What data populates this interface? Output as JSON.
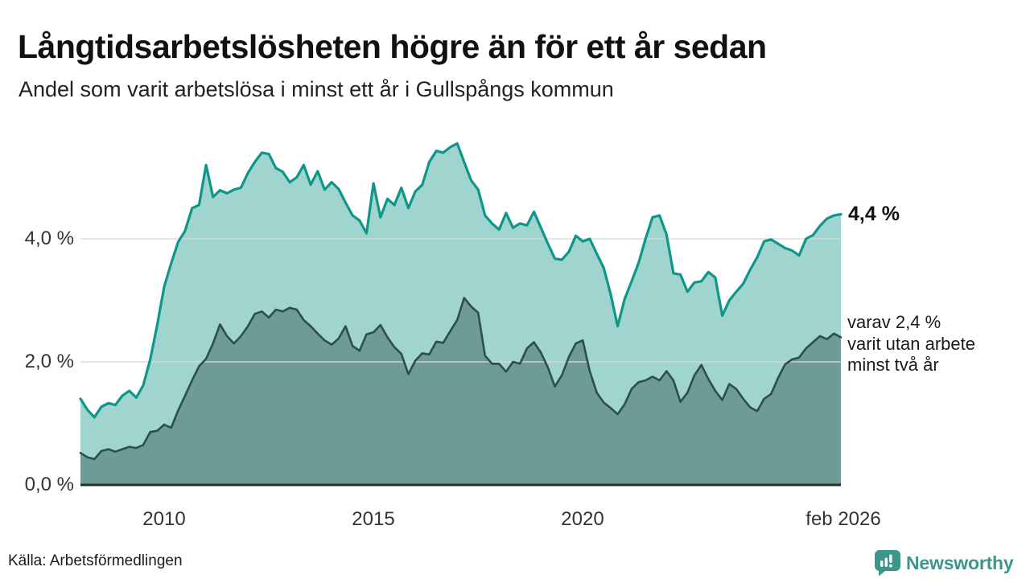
{
  "title": "Långtidsarbetslösheten högre än för ett år sedan",
  "subtitle": "Andel som varit arbetslösa i minst ett år i Gullspångs kommun",
  "source": "Källa: Arbetsförmedlingen",
  "branding": {
    "name": "Newsworthy"
  },
  "annotations": {
    "latest_total": "4,4 %",
    "sub_lines": [
      "varav 2,4 %",
      "varit utan arbete",
      "minst två år"
    ]
  },
  "colors": {
    "line_1": "#0f968a",
    "area_fill_1": "#a0d4ce",
    "line_2": "#2e4e4b",
    "area_fill_2": "#6f9b96",
    "gridline": "#d9d9d9",
    "baseline": "#22322f",
    "brand_teal": "#3d968a",
    "text": "#1a1a1a"
  },
  "chart_data": {
    "type": "area",
    "unit": "%",
    "x_start": "jan 2008",
    "x_end": "feb 2026",
    "sample_interval_months": 2,
    "xticks": [
      "2010",
      "2015",
      "2020",
      "feb 2026"
    ],
    "yticks": [
      "0,0 %",
      "2,0 %",
      "4,0 %"
    ],
    "ytick_values": [
      0.0,
      2.0,
      4.0
    ],
    "gridline_values": [
      2.0,
      4.0
    ],
    "ylim": [
      0,
      5.8
    ],
    "legend_position": "none",
    "grid": "horizontal-only",
    "series": [
      {
        "name": "Andel arbetslösa minst ett år",
        "latest_value": 4.4,
        "values": [
          1.4,
          1.22,
          1.1,
          1.27,
          1.33,
          1.3,
          1.45,
          1.53,
          1.42,
          1.62,
          2.04,
          2.6,
          3.22,
          3.6,
          3.95,
          4.13,
          4.5,
          4.55,
          5.2,
          4.68,
          4.79,
          4.74,
          4.8,
          4.83,
          5.07,
          5.25,
          5.4,
          5.38,
          5.15,
          5.09,
          4.92,
          5.0,
          5.2,
          4.88,
          5.1,
          4.8,
          4.92,
          4.81,
          4.59,
          4.38,
          4.3,
          4.09,
          4.9,
          4.35,
          4.65,
          4.55,
          4.83,
          4.5,
          4.77,
          4.88,
          5.25,
          5.43,
          5.4,
          5.49,
          5.55,
          5.25,
          4.95,
          4.8,
          4.38,
          4.25,
          4.15,
          4.42,
          4.18,
          4.25,
          4.22,
          4.44,
          4.18,
          3.92,
          3.68,
          3.66,
          3.79,
          4.05,
          3.96,
          4.0,
          3.76,
          3.53,
          3.1,
          2.58,
          3.02,
          3.31,
          3.61,
          4.0,
          4.35,
          4.38,
          4.07,
          3.44,
          3.42,
          3.14,
          3.29,
          3.31,
          3.46,
          3.37,
          2.75,
          3.0,
          3.14,
          3.27,
          3.5,
          3.7,
          3.96,
          3.99,
          3.92,
          3.85,
          3.81,
          3.73,
          4.0,
          4.06,
          4.21,
          4.33,
          4.38,
          4.4
        ]
      },
      {
        "name": "Andel arbetslösa minst två år",
        "latest_value": 2.4,
        "values": [
          0.52,
          0.45,
          0.42,
          0.55,
          0.58,
          0.54,
          0.58,
          0.62,
          0.6,
          0.65,
          0.86,
          0.88,
          0.98,
          0.93,
          1.21,
          1.45,
          1.7,
          1.93,
          2.05,
          2.3,
          2.61,
          2.42,
          2.3,
          2.42,
          2.58,
          2.78,
          2.82,
          2.72,
          2.85,
          2.82,
          2.88,
          2.85,
          2.68,
          2.58,
          2.46,
          2.35,
          2.28,
          2.38,
          2.58,
          2.26,
          2.18,
          2.45,
          2.48,
          2.6,
          2.4,
          2.24,
          2.13,
          1.8,
          2.02,
          2.14,
          2.12,
          2.33,
          2.31,
          2.5,
          2.68,
          3.04,
          2.9,
          2.8,
          2.1,
          1.97,
          1.97,
          1.84,
          2.0,
          1.97,
          2.22,
          2.32,
          2.15,
          1.91,
          1.6,
          1.78,
          2.08,
          2.3,
          2.35,
          1.85,
          1.5,
          1.34,
          1.25,
          1.15,
          1.31,
          1.56,
          1.67,
          1.7,
          1.76,
          1.7,
          1.85,
          1.7,
          1.35,
          1.5,
          1.78,
          1.95,
          1.72,
          1.53,
          1.38,
          1.64,
          1.56,
          1.4,
          1.26,
          1.2,
          1.4,
          1.48,
          1.74,
          1.96,
          2.04,
          2.07,
          2.22,
          2.32,
          2.42,
          2.37,
          2.46,
          2.4
        ]
      }
    ]
  }
}
